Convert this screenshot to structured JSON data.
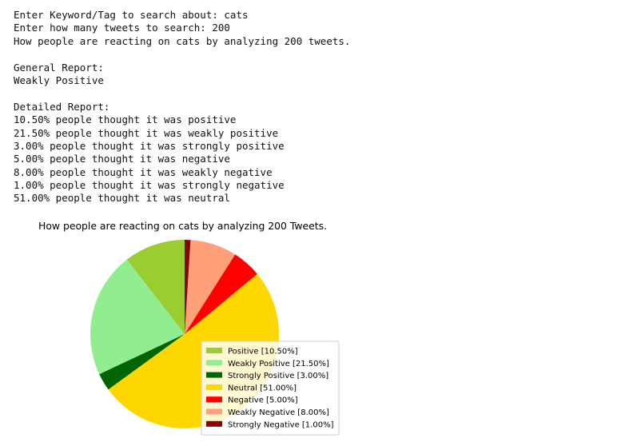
{
  "console": {
    "lines": [
      "Enter Keyword/Tag to search about: cats",
      "Enter how many tweets to search: 200",
      "How people are reacting on cats by analyzing 200 tweets.",
      "",
      "General Report:",
      "Weakly Positive",
      "",
      "Detailed Report:",
      "10.50% people thought it was positive",
      "21.50% people thought it was weakly positive",
      "3.00% people thought it was strongly positive",
      "5.00% people thought it was negative",
      "8.00% people thought it was weakly negative",
      "1.00% people thought it was strongly negative",
      "51.00% people thought it was neutral"
    ]
  },
  "chart_data": {
    "type": "pie",
    "title": "How people are reacting on cats by analyzing 200 Tweets.",
    "start_angle_deg": 90,
    "direction": "counterclockwise",
    "legend_position": "lower right",
    "slices": [
      {
        "label": "Positive [10.50%]",
        "value": 10.5,
        "color": "#9acd32"
      },
      {
        "label": "Weakly Positive [21.50%]",
        "value": 21.5,
        "color": "#90ee90"
      },
      {
        "label": "Strongly Positive [3.00%]",
        "value": 3.0,
        "color": "#006400"
      },
      {
        "label": "Neutral [51.00%]",
        "value": 51.0,
        "color": "#ffd700"
      },
      {
        "label": "Negative [5.00%]",
        "value": 5.0,
        "color": "#ff0000"
      },
      {
        "label": "Weakly Negative [8.00%]",
        "value": 8.0,
        "color": "#ffa07a"
      },
      {
        "label": "Strongly Negative [1.00%]",
        "value": 1.0,
        "color": "#8b0000"
      }
    ]
  }
}
